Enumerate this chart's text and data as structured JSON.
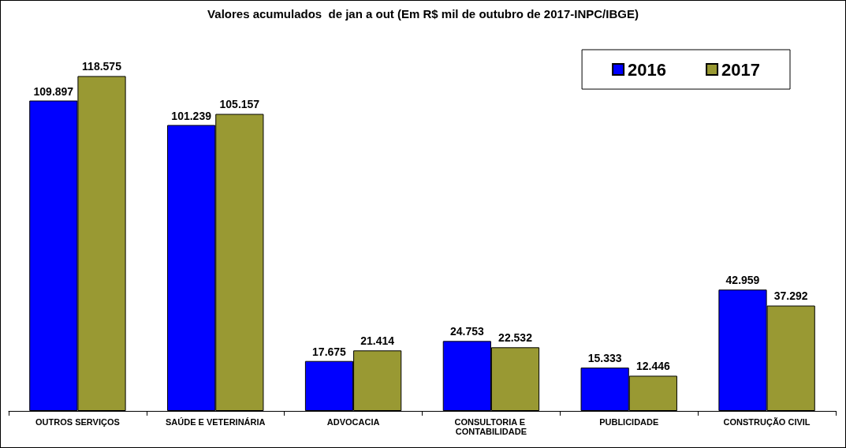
{
  "chart_data": {
    "type": "bar",
    "title": "Valores acumulados  de jan a out (Em R$ mil de outubro de 2017-INPC/IBGE)",
    "categories": [
      "OUTROS SERVIÇOS",
      "SAÚDE E VETERINÁRIA",
      "ADVOCACIA",
      "CONSULTORIA E CONTABILIDADE",
      "PUBLICIDADE",
      "CONSTRUÇÃO CIVIL"
    ],
    "series": [
      {
        "name": "2016",
        "color": "#0000ff",
        "values": [
          109897,
          101239,
          17675,
          24753,
          15333,
          42959
        ],
        "value_labels": [
          "109.897",
          "101.239",
          "17.675",
          "24.753",
          "15.333",
          "42.959"
        ]
      },
      {
        "name": "2017",
        "color": "#999933",
        "values": [
          118575,
          105157,
          21414,
          22532,
          12446,
          37292
        ],
        "value_labels": [
          "118.575",
          "105.157",
          "21.414",
          "22.532",
          "12.446",
          "37.292"
        ]
      }
    ],
    "legend": "top right"
  }
}
